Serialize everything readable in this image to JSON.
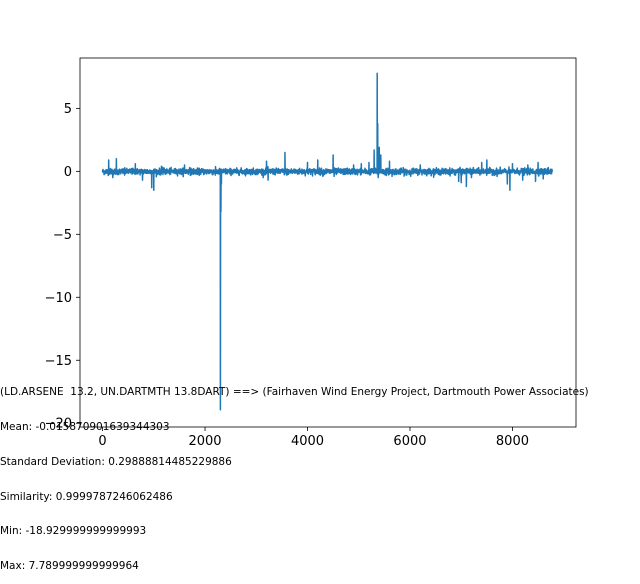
{
  "chart_data": {
    "type": "line",
    "title": "",
    "xlabel": "",
    "ylabel": "",
    "xlim": [
      -440,
      9240
    ],
    "ylim": [
      -20.3,
      9.0
    ],
    "xticks": [
      0,
      2000,
      4000,
      6000,
      8000
    ],
    "yticks": [
      -20,
      -15,
      -10,
      -5,
      0,
      5
    ],
    "grid": false,
    "series": [
      {
        "color": "#1f77b4",
        "n_points": 8784,
        "x_start": 0,
        "x_end": 8783,
        "baseline": -0.0159,
        "noise_std": 0.12,
        "notable_points": [
          {
            "x": 120,
            "y": 0.9
          },
          {
            "x": 200,
            "y": -0.5
          },
          {
            "x": 270,
            "y": 1.0
          },
          {
            "x": 430,
            "y": -0.3
          },
          {
            "x": 640,
            "y": 0.6
          },
          {
            "x": 780,
            "y": -0.7
          },
          {
            "x": 960,
            "y": -1.3
          },
          {
            "x": 1000,
            "y": -1.5
          },
          {
            "x": 1150,
            "y": 0.4
          },
          {
            "x": 1600,
            "y": 0.5
          },
          {
            "x": 1700,
            "y": 0.3
          },
          {
            "x": 2200,
            "y": -0.3
          },
          {
            "x": 2300,
            "y": -18.93
          },
          {
            "x": 2310,
            "y": -3.2
          },
          {
            "x": 2320,
            "y": -1.0
          },
          {
            "x": 3200,
            "y": 0.8
          },
          {
            "x": 3230,
            "y": -0.7
          },
          {
            "x": 3560,
            "y": 1.5
          },
          {
            "x": 3600,
            "y": -0.3
          },
          {
            "x": 4000,
            "y": 0.7
          },
          {
            "x": 4200,
            "y": 0.9
          },
          {
            "x": 4300,
            "y": -0.4
          },
          {
            "x": 4500,
            "y": 1.3
          },
          {
            "x": 4520,
            "y": -0.4
          },
          {
            "x": 4900,
            "y": 0.5
          },
          {
            "x": 5050,
            "y": 0.6
          },
          {
            "x": 5200,
            "y": 0.7
          },
          {
            "x": 5300,
            "y": 1.7
          },
          {
            "x": 5360,
            "y": 7.79
          },
          {
            "x": 5370,
            "y": 3.8
          },
          {
            "x": 5380,
            "y": -0.5
          },
          {
            "x": 5400,
            "y": 1.9
          },
          {
            "x": 5430,
            "y": 1.3
          },
          {
            "x": 5600,
            "y": 0.8
          },
          {
            "x": 5650,
            "y": -0.4
          },
          {
            "x": 5900,
            "y": -0.3
          },
          {
            "x": 6200,
            "y": 0.5
          },
          {
            "x": 6600,
            "y": -0.3
          },
          {
            "x": 6950,
            "y": -0.8
          },
          {
            "x": 7000,
            "y": -0.9
          },
          {
            "x": 7100,
            "y": -1.2
          },
          {
            "x": 7200,
            "y": -0.5
          },
          {
            "x": 7400,
            "y": 0.7
          },
          {
            "x": 7500,
            "y": 0.9
          },
          {
            "x": 7700,
            "y": -0.4
          },
          {
            "x": 7900,
            "y": -1.0
          },
          {
            "x": 7950,
            "y": -1.5
          },
          {
            "x": 8000,
            "y": 0.6
          },
          {
            "x": 8200,
            "y": -0.7
          },
          {
            "x": 8300,
            "y": 0.5
          },
          {
            "x": 8450,
            "y": -0.8
          },
          {
            "x": 8500,
            "y": 0.7
          },
          {
            "x": 8600,
            "y": -0.6
          },
          {
            "x": 8700,
            "y": 0.3
          }
        ]
      }
    ]
  },
  "stats_lines": [
    "(LD.ARSENE  13.2, UN.DARTMTH 13.8DART) ==> (Fairhaven Wind Energy Project, Dartmouth Power Associates)",
    "Mean: -0.01587090163934430​3",
    "Standard Deviation: 0.29888814485229886",
    "Similarity: 0.9999787246062486",
    "Min: -18.929999999999993",
    "Max: 7.789999999999964"
  ]
}
